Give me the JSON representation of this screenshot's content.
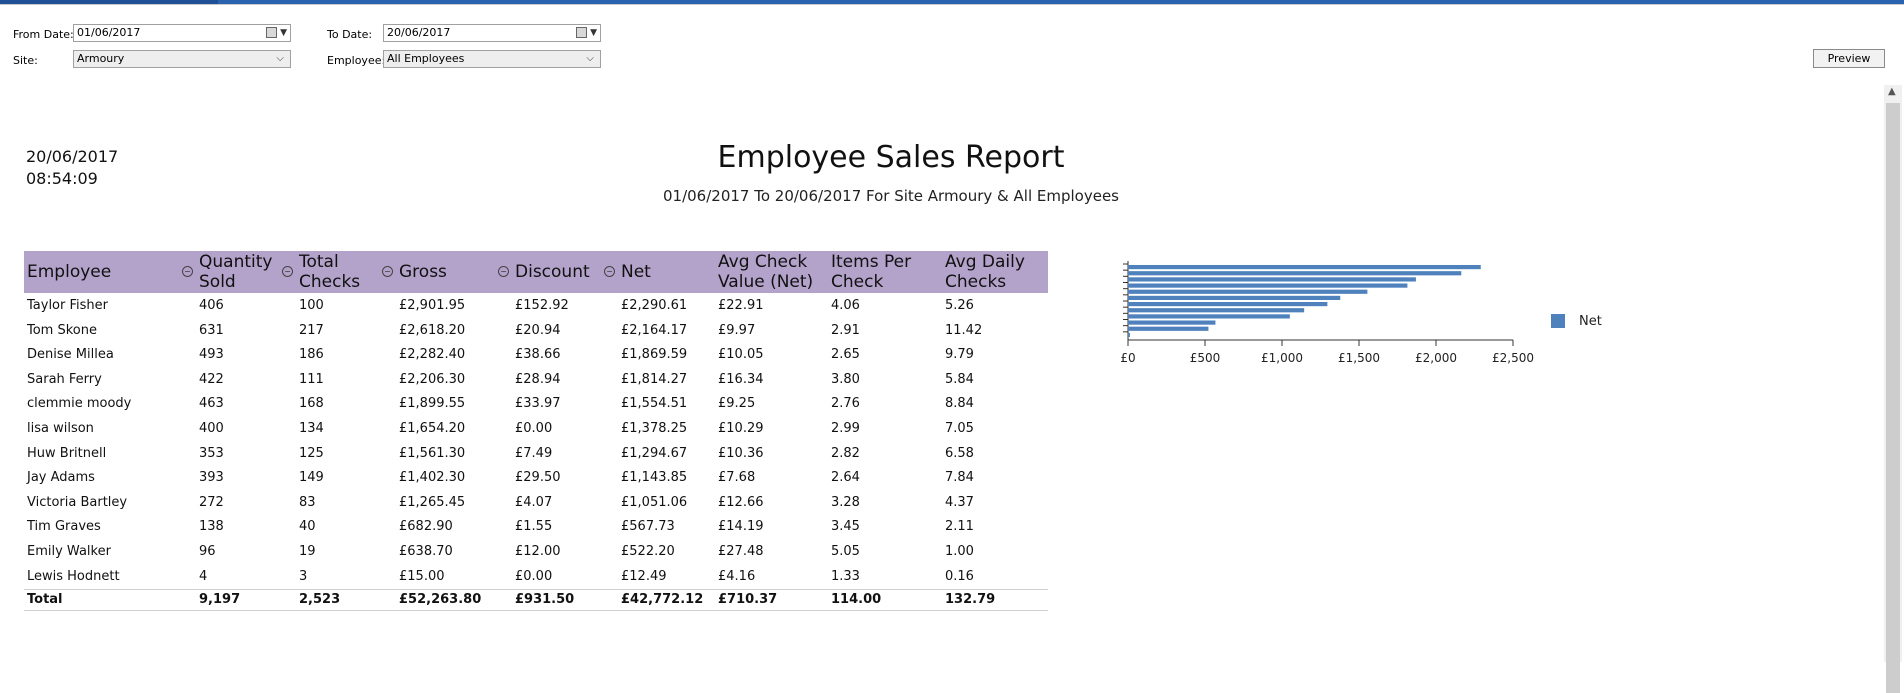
{
  "params": {
    "from_label": "From Date:",
    "from_value": "01/06/2017",
    "to_label": "To Date:",
    "to_value": "20/06/2017",
    "site_label": "Site:",
    "site_value": "Armoury",
    "employee_label": "Employee:",
    "employee_value": "All Employees",
    "preview_label": "Preview"
  },
  "report": {
    "date": "20/06/2017",
    "time": "08:54:09",
    "title": "Employee Sales Report",
    "subtitle": "01/06/2017 To 20/06/2017 For Site Armoury & All Employees"
  },
  "table": {
    "columns": [
      {
        "l1": "Employee",
        "l2": ""
      },
      {
        "l1": "Quantity",
        "l2": "Sold"
      },
      {
        "l1": "Total",
        "l2": "Checks"
      },
      {
        "l1": "Gross",
        "l2": ""
      },
      {
        "l1": "Discount",
        "l2": ""
      },
      {
        "l1": "Net",
        "l2": ""
      },
      {
        "l1": "Avg Check",
        "l2": "Value (Net)"
      },
      {
        "l1": "Items Per",
        "l2": "Check"
      },
      {
        "l1": "Avg Daily",
        "l2": "Checks"
      }
    ],
    "rows": [
      [
        "Taylor Fisher",
        "406",
        "100",
        "£2,901.95",
        "£152.92",
        "£2,290.61",
        "£22.91",
        "4.06",
        "5.26"
      ],
      [
        "Tom Skone",
        "631",
        "217",
        "£2,618.20",
        "£20.94",
        "£2,164.17",
        "£9.97",
        "2.91",
        "11.42"
      ],
      [
        "Denise Millea",
        "493",
        "186",
        "£2,282.40",
        "£38.66",
        "£1,869.59",
        "£10.05",
        "2.65",
        "9.79"
      ],
      [
        "Sarah Ferry",
        "422",
        "111",
        "£2,206.30",
        "£28.94",
        "£1,814.27",
        "£16.34",
        "3.80",
        "5.84"
      ],
      [
        "clemmie moody",
        "463",
        "168",
        "£1,899.55",
        "£33.97",
        "£1,554.51",
        "£9.25",
        "2.76",
        "8.84"
      ],
      [
        "lisa wilson",
        "400",
        "134",
        "£1,654.20",
        "£0.00",
        "£1,378.25",
        "£10.29",
        "2.99",
        "7.05"
      ],
      [
        "Huw Britnell",
        "353",
        "125",
        "£1,561.30",
        "£7.49",
        "£1,294.67",
        "£10.36",
        "2.82",
        "6.58"
      ],
      [
        "Jay Adams",
        "393",
        "149",
        "£1,402.30",
        "£29.50",
        "£1,143.85",
        "£7.68",
        "2.64",
        "7.84"
      ],
      [
        "Victoria Bartley",
        "272",
        "83",
        "£1,265.45",
        "£4.07",
        "£1,051.06",
        "£12.66",
        "3.28",
        "4.37"
      ],
      [
        "Tim Graves",
        "138",
        "40",
        "£682.90",
        "£1.55",
        "£567.73",
        "£14.19",
        "3.45",
        "2.11"
      ],
      [
        "Emily Walker",
        "96",
        "19",
        "£638.70",
        "£12.00",
        "£522.20",
        "£27.48",
        "5.05",
        "1.00"
      ],
      [
        "Lewis Hodnett",
        "4",
        "3",
        "£15.00",
        "£0.00",
        "£12.49",
        "£4.16",
        "1.33",
        "0.16"
      ]
    ],
    "total": [
      "Total",
      "9,197",
      "2,523",
      "£52,263.80",
      "£931.50",
      "£42,772.12",
      "£710.37",
      "114.00",
      "132.79"
    ]
  },
  "chart_data": {
    "type": "bar",
    "orientation": "horizontal",
    "categories": [
      "Taylor Fisher",
      "Tom Skone",
      "Denise Millea",
      "Sarah Ferry",
      "clemmie moody",
      "lisa wilson",
      "Huw Britnell",
      "Jay Adams",
      "Victoria Bartley",
      "Tim Graves",
      "Emily Walker",
      "Lewis Hodnett"
    ],
    "series": [
      {
        "name": "Net",
        "values": [
          2290.61,
          2164.17,
          1869.59,
          1814.27,
          1554.51,
          1378.25,
          1294.67,
          1143.85,
          1051.06,
          567.73,
          522.2,
          12.49
        ]
      }
    ],
    "xlim": [
      0,
      2500
    ],
    "ticks": [
      0,
      500,
      1000,
      1500,
      2000,
      2500
    ],
    "tick_labels": [
      "£0",
      "£500",
      "£1,000",
      "£1,500",
      "£2,000",
      "£2,500"
    ],
    "bar_color": "#4f81bd",
    "legend": "right",
    "grid": false
  }
}
